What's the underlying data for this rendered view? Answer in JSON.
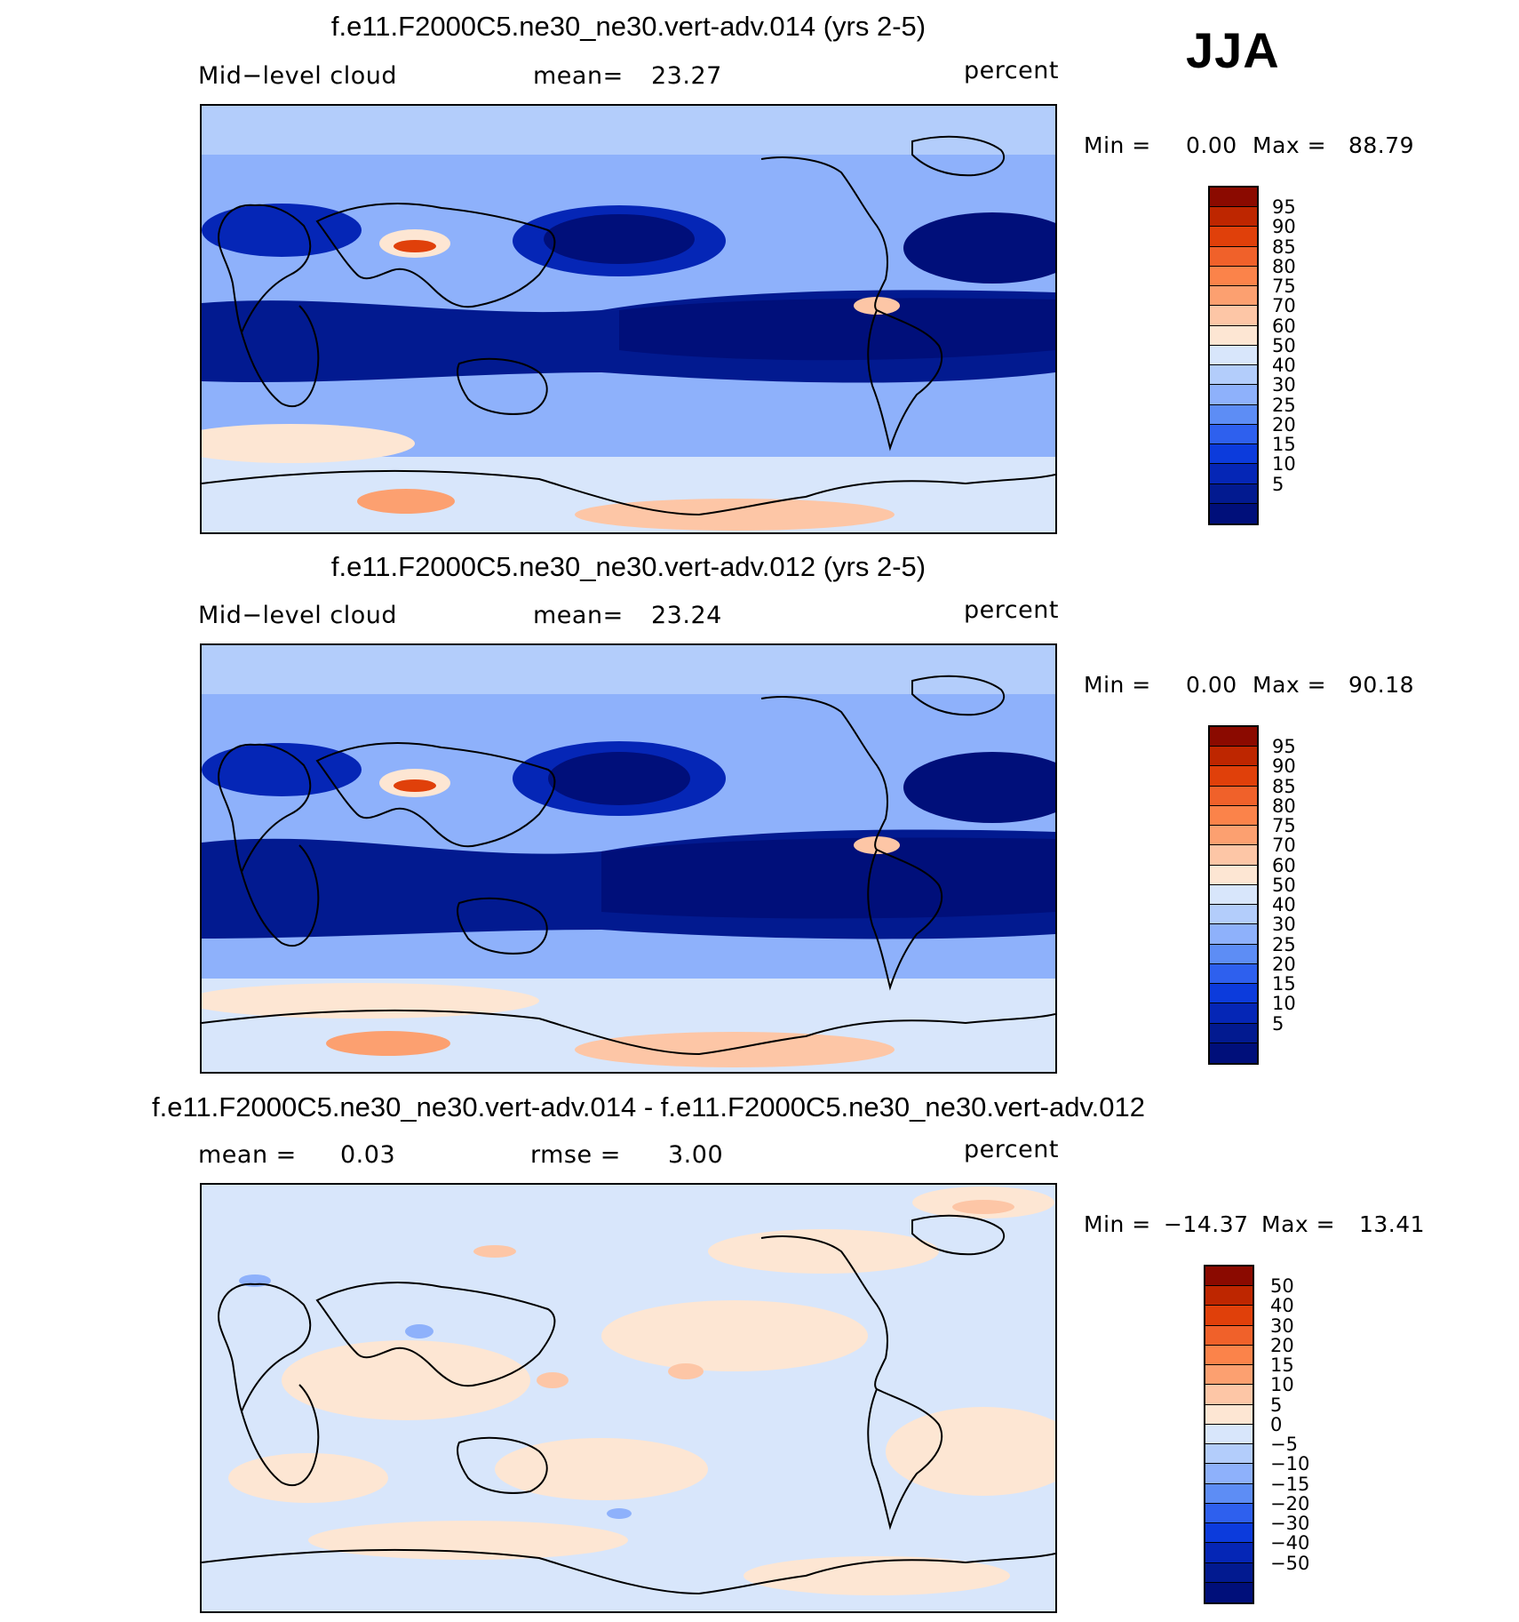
{
  "season": "JJA",
  "panels": [
    {
      "title": "f.e11.F2000C5.ne30_ne30.vert-adv.014 (yrs 2-5)",
      "left_label": "Mid−level cloud",
      "stat_label": "mean=",
      "stat_value": "23.27",
      "units": "percent",
      "min_label": "Min =",
      "min_value": "0.00",
      "max_label": "Max =",
      "max_value": "88.79",
      "colorbar_labels": [
        "95",
        "90",
        "85",
        "80",
        "75",
        "70",
        "60",
        "50",
        "40",
        "30",
        "25",
        "20",
        "15",
        "10",
        "5"
      ],
      "colorbar_colors": [
        "#8b0a00",
        "#be2600",
        "#e0400a",
        "#f0612a",
        "#fb834a",
        "#fca070",
        "#fdc6a6",
        "#fde6d3",
        "#d8e6fb",
        "#b3cdfb",
        "#8eb1fb",
        "#5d8df5",
        "#2e60ee",
        "#0c3bdc",
        "#0526b6",
        "#021a90",
        "#000f7a"
      ]
    },
    {
      "title": "f.e11.F2000C5.ne30_ne30.vert-adv.012 (yrs 2-5)",
      "left_label": "Mid−level cloud",
      "stat_label": "mean=",
      "stat_value": "23.24",
      "units": "percent",
      "min_label": "Min =",
      "min_value": "0.00",
      "max_label": "Max =",
      "max_value": "90.18",
      "colorbar_labels": [
        "95",
        "90",
        "85",
        "80",
        "75",
        "70",
        "60",
        "50",
        "40",
        "30",
        "25",
        "20",
        "15",
        "10",
        "5"
      ],
      "colorbar_colors": [
        "#8b0a00",
        "#be2600",
        "#e0400a",
        "#f0612a",
        "#fb834a",
        "#fca070",
        "#fdc6a6",
        "#fde6d3",
        "#d8e6fb",
        "#b3cdfb",
        "#8eb1fb",
        "#5d8df5",
        "#2e60ee",
        "#0c3bdc",
        "#0526b6",
        "#021a90",
        "#000f7a"
      ]
    },
    {
      "title": "f.e11.F2000C5.ne30_ne30.vert-adv.014 - f.e11.F2000C5.ne30_ne30.vert-adv.012",
      "left_label": "mean =",
      "left_value": "0.03",
      "stat_label": "rmse =",
      "stat_value": "3.00",
      "units": "percent",
      "min_label": "Min =",
      "min_value": "−14.37",
      "max_label": "Max =",
      "max_value": "13.41",
      "colorbar_labels": [
        "50",
        "40",
        "30",
        "20",
        "15",
        "10",
        "5",
        "0",
        "−5",
        "−10",
        "−15",
        "−20",
        "−30",
        "−40",
        "−50"
      ],
      "colorbar_colors": [
        "#8b0a00",
        "#be2600",
        "#e0400a",
        "#f0612a",
        "#fb834a",
        "#fca070",
        "#fdc6a6",
        "#fde6d3",
        "#d8e6fb",
        "#b3cdfb",
        "#8eb1fb",
        "#5d8df5",
        "#2e60ee",
        "#0c3bdc",
        "#0526b6",
        "#021a90",
        "#000f7a"
      ]
    }
  ]
}
